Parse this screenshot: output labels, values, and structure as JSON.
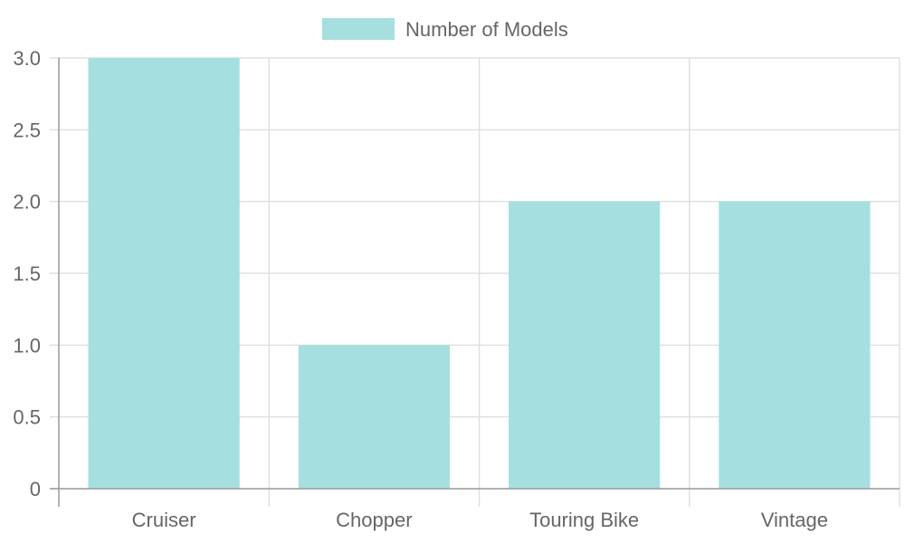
{
  "chart_data": {
    "type": "bar",
    "categories": [
      "Cruiser",
      "Chopper",
      "Touring Bike",
      "Vintage"
    ],
    "series": [
      {
        "name": "Number of Models",
        "values": [
          3,
          1,
          2,
          2
        ]
      }
    ],
    "title": "",
    "xlabel": "",
    "ylabel": "",
    "ylim": [
      0,
      3
    ],
    "y_ticks": [
      "0",
      "0.5",
      "1.0",
      "1.5",
      "2.0",
      "2.5",
      "3.0"
    ],
    "grid": true,
    "legend_position": "top",
    "colors": {
      "bar_fill": "#a6dfdf",
      "grid": "#e0e0e0",
      "axis": "#999999",
      "text": "#666666"
    }
  }
}
